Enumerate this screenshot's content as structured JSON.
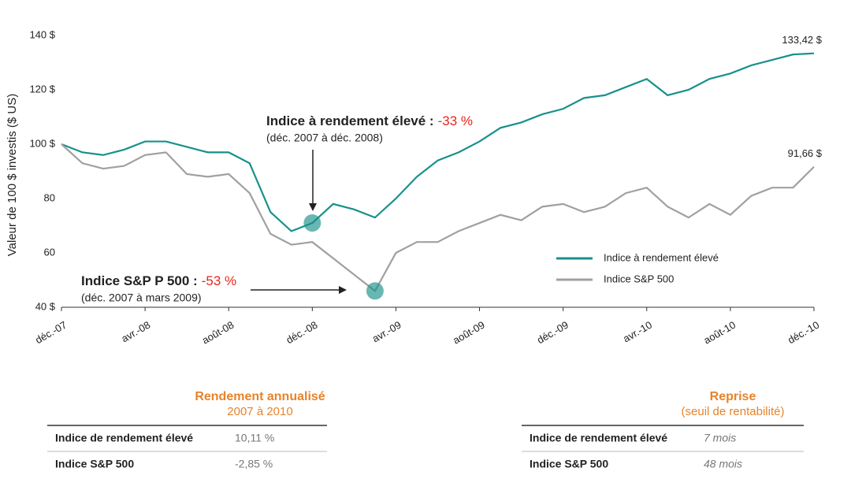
{
  "chart_data": {
    "type": "line",
    "y_label": "Valeur de 100 $ investis ($ US)",
    "categories": [
      "déc.-07",
      null,
      null,
      null,
      "avr.-08",
      null,
      null,
      null,
      "août-08",
      null,
      null,
      null,
      "déc.-08",
      null,
      null,
      null,
      "avr.-09",
      null,
      null,
      null,
      "août-09",
      null,
      null,
      null,
      "déc.-09",
      null,
      null,
      null,
      "avr.-10",
      null,
      null,
      null,
      "août-10",
      null,
      null,
      null,
      "déc.-10"
    ],
    "series": [
      {
        "name": "Indice à rendement élevé",
        "color": "#17918b",
        "values": [
          100,
          97,
          96,
          98,
          101,
          101,
          99,
          97,
          97,
          93,
          75,
          68,
          71,
          78,
          76,
          73,
          80,
          88,
          94,
          97,
          101,
          106,
          108,
          111,
          113,
          117,
          118,
          121,
          124,
          118,
          120,
          124,
          126,
          129,
          131,
          133,
          133.42
        ],
        "value_labels": [
          null,
          null,
          null,
          null,
          null,
          null,
          null,
          null,
          null,
          null,
          null,
          null,
          null,
          null,
          null,
          null,
          null,
          null,
          null,
          null,
          null,
          null,
          null,
          null,
          null,
          null,
          null,
          null,
          null,
          null,
          null,
          null,
          null,
          null,
          null,
          null,
          "133,42 $"
        ]
      },
      {
        "name": "Indice S&P 500",
        "color": "#a0a0a0",
        "values": [
          100,
          93,
          91,
          92,
          96,
          97,
          89,
          88,
          89,
          82,
          67,
          63,
          64,
          58,
          52,
          46,
          60,
          64,
          64,
          68,
          71,
          74,
          72,
          77,
          78,
          75,
          77,
          82,
          84,
          77,
          73,
          78,
          74,
          81,
          84,
          84,
          91.66
        ],
        "value_labels": [
          null,
          null,
          null,
          null,
          null,
          null,
          null,
          null,
          null,
          null,
          null,
          null,
          null,
          null,
          null,
          null,
          null,
          null,
          null,
          null,
          null,
          null,
          null,
          null,
          null,
          null,
          null,
          null,
          null,
          null,
          null,
          null,
          null,
          null,
          null,
          null,
          "91,66 $"
        ]
      }
    ],
    "ylim": [
      40,
      140
    ],
    "yticks": [
      {
        "value": 40,
        "label": "40 $"
      },
      60,
      80,
      {
        "value": 100,
        "label": "100 $"
      },
      {
        "value": 120,
        "label": "120 $"
      },
      {
        "value": 140,
        "label": "140 $"
      }
    ],
    "annotations": [
      {
        "title": "Indice à rendement élevé :",
        "change": "-33 %",
        "period": "(déc. 2007 à déc. 2008)",
        "series": 0,
        "index": 12
      },
      {
        "title": "Indice S&P P 500 :",
        "change": "-53 %",
        "period": "(déc. 2007 à mars 2009)",
        "series": 1,
        "index": 15
      }
    ]
  },
  "tables": [
    {
      "title": "Rendement annualisé",
      "subtitle": "2007 à 2010",
      "rows": [
        [
          "Indice de rendement élevé",
          "10,11 %"
        ],
        [
          "Indice S&P 500",
          "-2,85 %"
        ]
      ]
    },
    {
      "title": "Reprise",
      "subtitle": "(seuil de rentabilité)",
      "rows": [
        [
          "Indice de rendement élevé",
          "7 mois"
        ],
        [
          "Indice S&P 500",
          "48 mois"
        ]
      ]
    }
  ]
}
